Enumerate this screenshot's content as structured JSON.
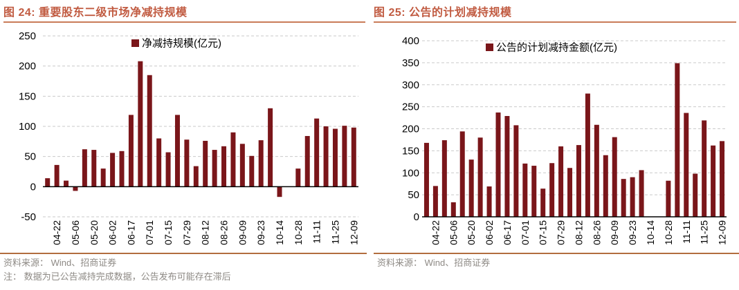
{
  "panels": [
    {
      "title": "图 24: 重要股东二级市场净减持规模",
      "source": "资料来源： Wind、招商证券",
      "note": "注： 数据为已公告减持完成数据，公告发布可能存在滞后"
    },
    {
      "title": "图 25: 公告的计划减持规模",
      "source": "资料来源： Wind、招商证券",
      "note": ""
    }
  ],
  "chart_data": [
    {
      "type": "bar",
      "title": "图 24: 重要股东二级市场净减持规模",
      "legend": [
        "净减持规模(亿元)"
      ],
      "x_tick_labels": [
        "04-22",
        "05-06",
        "05-20",
        "06-02",
        "06-17",
        "07-01",
        "07-15",
        "07-29",
        "08-12",
        "08-26",
        "09-09",
        "09-23",
        "10-14",
        "10-28",
        "11-11",
        "11-25",
        "12-09"
      ],
      "tick_rule": "bars are weekly; one date label under every second bar (slots 1,3,5...33 of 34)",
      "values": [
        14,
        36,
        10,
        -7,
        62,
        61,
        30,
        56,
        59,
        119,
        208,
        185,
        80,
        57,
        119,
        78,
        34,
        76,
        61,
        67,
        90,
        71,
        51,
        77,
        130,
        -17,
        0,
        30,
        84,
        113,
        100,
        96,
        101,
        98
      ],
      "ylim": [
        -50,
        250
      ],
      "ytick_step": 50,
      "grid": "horizontal-dashed",
      "legend_position": "top-center",
      "bar_color": "#7a161a"
    },
    {
      "type": "bar",
      "title": "图 25: 公告的计划减持规模",
      "legend": [
        "公告的计划减持金额(亿元)"
      ],
      "x_tick_labels": [
        "04-22",
        "05-06",
        "05-20",
        "06-02",
        "06-17",
        "07-01",
        "07-15",
        "07-29",
        "08-12",
        "08-26",
        "09-09",
        "09-23",
        "10-14",
        "10-28",
        "11-11",
        "11-25",
        "12-09"
      ],
      "tick_rule": "bars are weekly; one date label under every second bar (slots 1,3,5...33 of 34)",
      "values": [
        168,
        70,
        174,
        33,
        194,
        130,
        180,
        69,
        237,
        229,
        208,
        121,
        116,
        64,
        122,
        160,
        111,
        163,
        280,
        209,
        140,
        181,
        86,
        90,
        106,
        0,
        0,
        82,
        349,
        236,
        98,
        219,
        162,
        172
      ],
      "ylim": [
        0,
        400
      ],
      "ytick_step": 50,
      "grid": "horizontal-dashed",
      "legend_position": "top-center",
      "bar_color": "#7a161a"
    }
  ],
  "colors": {
    "bar": "#7a161a",
    "title": "#c15b41",
    "title_underline": "#c97b57",
    "footer_rule": "#b26d3e",
    "footer_text": "#8e8a85",
    "axis": "#000000",
    "gridline": "#c9c9c9"
  }
}
